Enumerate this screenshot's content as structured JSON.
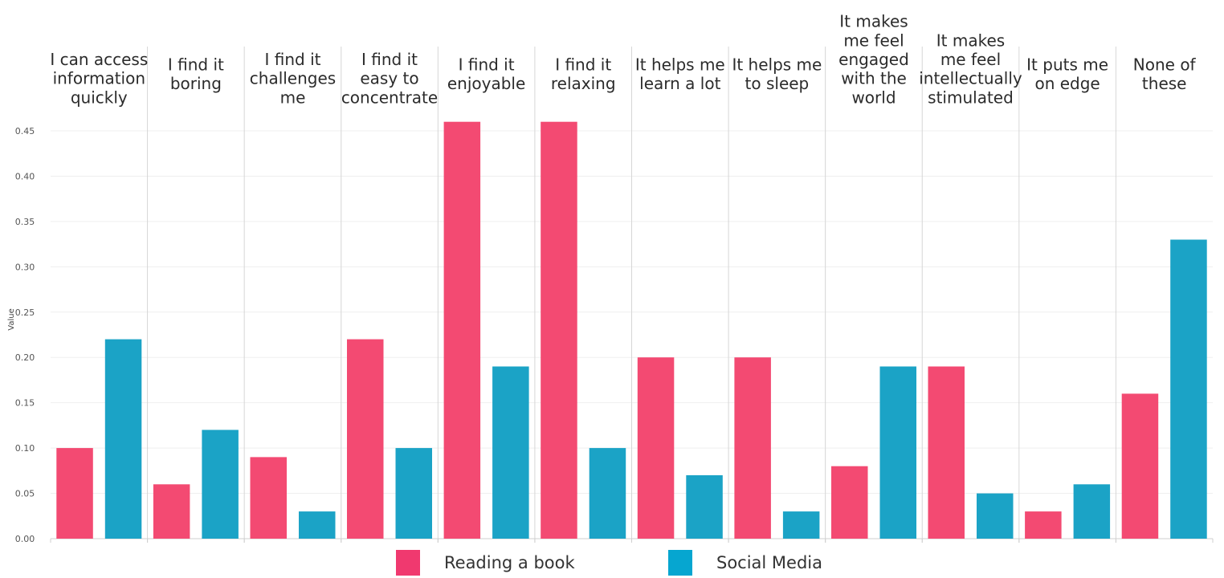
{
  "chart_data": {
    "type": "bar",
    "title": "",
    "xlabel": "",
    "ylabel": "Value",
    "ylim": [
      0,
      0.47
    ],
    "yticks": [
      "0.00",
      "0.05",
      "0.10",
      "0.15",
      "0.20",
      "0.25",
      "0.30",
      "0.35",
      "0.40",
      "0.45"
    ],
    "categories": [
      "I can access information quickly",
      "I find it boring",
      "I find it challenges me",
      "I find it easy to concentrate",
      "I find it enjoyable",
      "I find it relaxing",
      "It helps me learn a lot",
      "It helps me to sleep",
      "It makes me feel engaged with the world",
      "It makes me feel intellectually stimulated",
      "It puts me on edge",
      "None of these"
    ],
    "category_lines": [
      [
        "I can access",
        "information",
        "quickly"
      ],
      [
        "I find it",
        "boring"
      ],
      [
        "I find it",
        "challenges",
        "me"
      ],
      [
        "I find it",
        "easy to",
        "concentrate"
      ],
      [
        "I find it",
        "enjoyable"
      ],
      [
        "I find it",
        "relaxing"
      ],
      [
        "It helps me",
        "learn a lot"
      ],
      [
        "It helps me",
        "to sleep"
      ],
      [
        "It makes",
        "me feel",
        "engaged",
        "with the",
        "world"
      ],
      [
        "It makes",
        "me feel",
        "intellectually",
        "stimulated"
      ],
      [
        "It puts me",
        "on edge"
      ],
      [
        "None of",
        "these"
      ]
    ],
    "series": [
      {
        "name": "Reading a book",
        "color": "#f34a72",
        "values": [
          0.1,
          0.06,
          0.09,
          0.22,
          0.46,
          0.46,
          0.2,
          0.2,
          0.08,
          0.19,
          0.03,
          0.16
        ]
      },
      {
        "name": "Social Media",
        "color": "#1ba3c6",
        "values": [
          0.22,
          0.12,
          0.03,
          0.1,
          0.19,
          0.1,
          0.07,
          0.03,
          0.19,
          0.05,
          0.06,
          0.33
        ]
      }
    ],
    "grid": true,
    "legend_position": "bottom-center"
  },
  "legend": {
    "items": [
      {
        "label": "Reading a book",
        "color": "#f0396f"
      },
      {
        "label": "Social Media",
        "color": "#06a6d0"
      }
    ]
  }
}
